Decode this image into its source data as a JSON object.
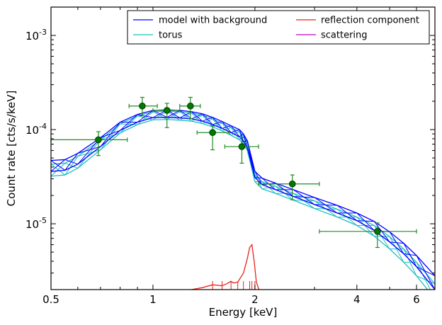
{
  "chart_data": {
    "type": "line",
    "title": "",
    "xlabel": "Energy [keV]",
    "ylabel": "Count rate [cts/s/keV]",
    "xscale": "log",
    "yscale": "log",
    "xlim": [
      0.5,
      6.8
    ],
    "ylim": [
      2e-06,
      0.002
    ],
    "x_ticks": [
      {
        "value": 0.5,
        "label": "0.5"
      },
      {
        "value": 1,
        "label": "1"
      },
      {
        "value": 2,
        "label": "2"
      },
      {
        "value": 4,
        "label": "4"
      },
      {
        "value": 6,
        "label": "6"
      }
    ],
    "y_ticks": [
      {
        "value": 1e-05,
        "base": "10",
        "exp": "-5"
      },
      {
        "value": 0.0001,
        "base": "10",
        "exp": "-4"
      },
      {
        "value": 0.001,
        "base": "10",
        "exp": "-3"
      }
    ],
    "legend_position": "top-right",
    "series": [
      {
        "name": "model with background",
        "color": "#0000ff",
        "x": [
          0.5,
          0.55,
          0.6,
          0.7,
          0.8,
          0.9,
          1.0,
          1.1,
          1.2,
          1.3,
          1.4,
          1.5,
          1.6,
          1.7,
          1.8,
          1.85,
          1.9,
          2.0,
          2.1,
          2.3,
          2.6,
          3.0,
          3.5,
          4.0,
          4.5,
          5.0,
          5.5,
          6.0,
          6.8
        ],
        "lower": [
          3.6e-05,
          3.7e-05,
          4.3e-05,
          6.6e-05,
          9.8e-05,
          0.00012,
          0.000134,
          0.000135,
          0.000133,
          0.00013,
          0.000123,
          0.000113,
          0.000103,
          9.3e-05,
          8.4e-05,
          7.5e-05,
          6.4e-05,
          3.1e-05,
          2.6e-05,
          2.3e-05,
          1.95e-05,
          1.6e-05,
          1.3e-05,
          1.08e-05,
          8.5e-06,
          6.4e-06,
          4.8e-06,
          3.5e-06,
          2e-06
        ],
        "upper": [
          4.7e-05,
          4.8e-05,
          5.6e-05,
          8.2e-05,
          0.00012,
          0.000145,
          0.00016,
          0.000162,
          0.00016,
          0.000155,
          0.000147,
          0.000135,
          0.000122,
          0.00011,
          0.0001,
          9e-05,
          7.6e-05,
          3.6e-05,
          3.05e-05,
          2.7e-05,
          2.3e-05,
          1.9e-05,
          1.57e-05,
          1.3e-05,
          1.06e-05,
          8.2e-06,
          6.2e-06,
          4.6e-06,
          2.8e-06
        ]
      },
      {
        "name": "torus",
        "color": "#1fbfbf",
        "x": [
          0.5,
          0.55,
          0.6,
          0.7,
          0.8,
          0.9,
          1.0,
          1.1,
          1.2,
          1.3,
          1.4,
          1.5,
          1.6,
          1.7,
          1.8,
          1.85,
          1.9,
          2.0,
          2.1,
          2.3,
          2.6,
          3.0,
          3.5,
          4.0,
          4.5,
          5.0,
          5.5,
          6.0,
          6.8
        ],
        "lower": [
          3.2e-05,
          3.3e-05,
          3.9e-05,
          6.1e-05,
          9.2e-05,
          0.000113,
          0.000127,
          0.000128,
          0.000126,
          0.000123,
          0.000116,
          0.000107,
          9.7e-05,
          8.7e-05,
          7.8e-05,
          7e-05,
          6e-05,
          2.8e-05,
          2.35e-05,
          2.1e-05,
          1.78e-05,
          1.45e-05,
          1.18e-05,
          9.6e-06,
          7.4e-06,
          5.4e-06,
          3.9e-06,
          2.8e-06,
          1.6e-06
        ],
        "upper": [
          4.3e-05,
          4.4e-05,
          5.2e-05,
          7.8e-05,
          0.000115,
          0.00014,
          0.000155,
          0.000157,
          0.000155,
          0.00015,
          0.000142,
          0.00013,
          0.000117,
          0.000105,
          9.5e-05,
          8.6e-05,
          7.2e-05,
          3.3e-05,
          2.8e-05,
          2.5e-05,
          2.1e-05,
          1.75e-05,
          1.43e-05,
          1.18e-05,
          9.6e-06,
          7.3e-06,
          5.4e-06,
          3.9e-06,
          2.3e-06
        ]
      },
      {
        "name": "reflection component",
        "color": "#e8221b",
        "x": [
          1.3,
          1.4,
          1.5,
          1.6,
          1.65,
          1.7,
          1.73,
          1.78,
          1.85,
          1.9,
          1.93,
          1.96,
          1.99,
          2.02,
          2.05,
          2.08
        ],
        "y": [
          2e-06,
          2.1e-06,
          2.25e-06,
          2.2e-06,
          2.3e-06,
          2.45e-06,
          2.35e-06,
          2.4e-06,
          3e-06,
          4.3e-06,
          5.6e-06,
          6e-06,
          4e-06,
          2.4e-06,
          2.05e-06,
          1.9e-06
        ]
      },
      {
        "name": "scattering",
        "color": "#bf00bf",
        "x": [],
        "y": []
      }
    ],
    "data_points": [
      {
        "x": 0.69,
        "xerr": [
          0.5,
          0.84
        ],
        "y": 7.8e-05,
        "yerr": [
          5.3e-05,
          9.5e-05
        ]
      },
      {
        "x": 0.93,
        "xerr": [
          0.85,
          1.03
        ],
        "y": 0.000178,
        "yerr": [
          0.00014,
          0.00022
        ]
      },
      {
        "x": 1.1,
        "xerr": [
          1.0,
          1.2
        ],
        "y": 0.00016,
        "yerr": [
          0.000105,
          0.00019
        ]
      },
      {
        "x": 1.29,
        "xerr": [
          1.2,
          1.38
        ],
        "y": 0.000178,
        "yerr": [
          0.00013,
          0.00022
        ]
      },
      {
        "x": 1.5,
        "xerr": [
          1.35,
          1.68
        ],
        "y": 9.3e-05,
        "yerr": [
          6.1e-05,
          0.00011
        ]
      },
      {
        "x": 1.83,
        "xerr": [
          1.63,
          2.05
        ],
        "y": 6.6e-05,
        "yerr": [
          4.4e-05,
          8.2e-05
        ]
      },
      {
        "x": 2.58,
        "xerr": [
          2.05,
          3.1
        ],
        "y": 2.65e-05,
        "yerr": [
          1.8e-05,
          3.3e-05
        ]
      },
      {
        "x": 4.6,
        "xerr": [
          3.1,
          6.0
        ],
        "y": 8.3e-06,
        "yerr": [
          5.6e-06,
          1.02e-05
        ]
      }
    ],
    "data_color": "#228b22",
    "data_fill": "#007a00"
  }
}
